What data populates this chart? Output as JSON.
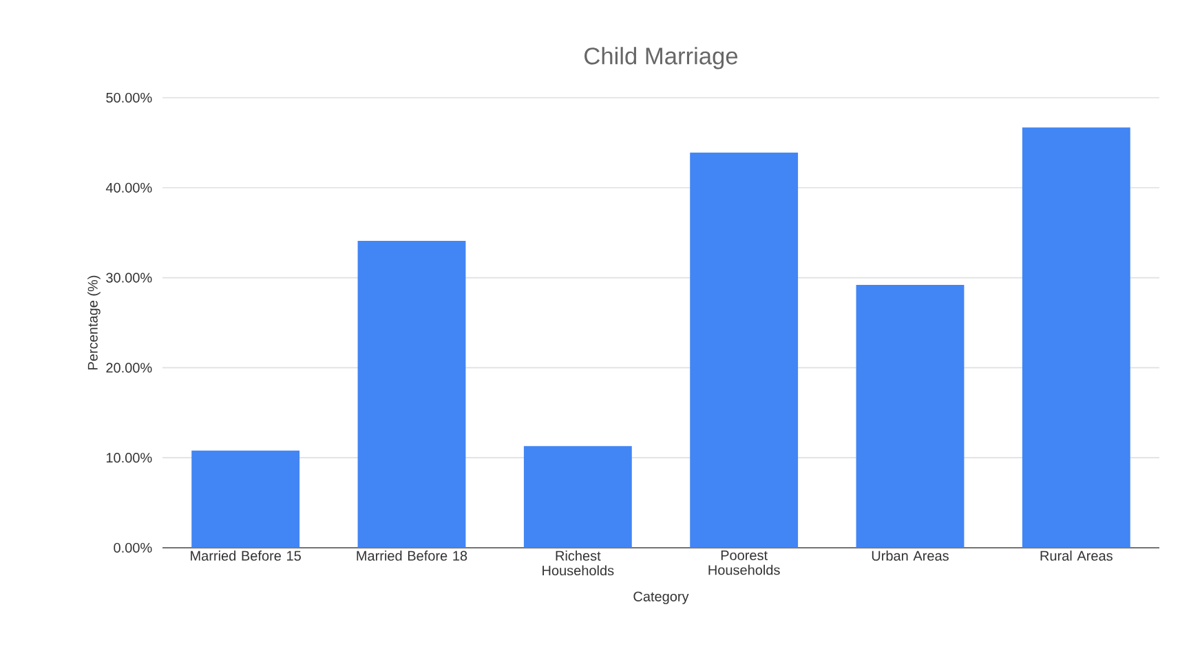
{
  "chart_data": {
    "type": "bar",
    "title": "Child Marriage",
    "xlabel": "Category",
    "ylabel": "Percentage (%)",
    "categories": [
      "Married Before 15",
      "Married Before 18",
      "Richest Households",
      "Poorest Households",
      "Urban Areas",
      "Rural Areas"
    ],
    "values": [
      10.8,
      34.1,
      11.3,
      43.9,
      29.2,
      46.7
    ],
    "color": "#4285f4",
    "ylim": [
      0,
      50
    ],
    "yticks": [
      {
        "value": 0,
        "label": "0.00%"
      },
      {
        "value": 10,
        "label": "10.00%"
      },
      {
        "value": 20,
        "label": "20.00%"
      },
      {
        "value": 30,
        "label": "30.00%"
      },
      {
        "value": 40,
        "label": "40.00%"
      },
      {
        "value": 50,
        "label": "50.00%"
      }
    ],
    "grid": "y"
  }
}
